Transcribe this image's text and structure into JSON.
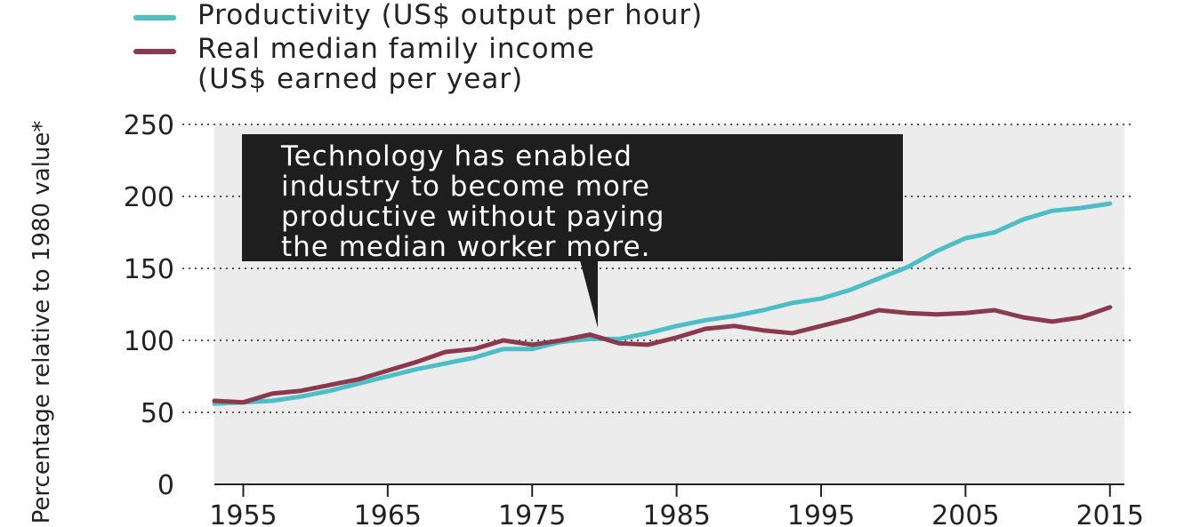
{
  "legend": {
    "productivity": "Productivity (US$ output per hour)",
    "income_line1": "Real median family income",
    "income_line2": "(US$ earned per year)"
  },
  "callout": {
    "text": "Technology has enabled\nindustry to become more\nproductive without paying\nthe median worker more."
  },
  "colors": {
    "productivity": "#4dbdc6",
    "income": "#8b3a4d",
    "plot_background": "#ececec",
    "callout_background": "#1e1e1e"
  },
  "chart_data": {
    "type": "line",
    "title": "",
    "xlabel": "",
    "ylabel": "Percentage relative to 1980 value*",
    "xlim": [
      1953,
      2016
    ],
    "ylim": [
      0,
      250
    ],
    "xticks": [
      1955,
      1965,
      1975,
      1985,
      1995,
      2005,
      2015
    ],
    "yticks": [
      0,
      50,
      100,
      150,
      200,
      250
    ],
    "grid": "horizontal dotted",
    "legend_position": "top",
    "series": [
      {
        "name": "Productivity (US$ output per hour)",
        "x": [
          1953,
          1955,
          1957,
          1959,
          1961,
          1963,
          1965,
          1967,
          1969,
          1971,
          1973,
          1975,
          1977,
          1979,
          1981,
          1983,
          1985,
          1987,
          1989,
          1991,
          1993,
          1995,
          1997,
          1999,
          2001,
          2003,
          2005,
          2007,
          2009,
          2011,
          2013,
          2015
        ],
        "y": [
          56,
          57,
          58,
          61,
          65,
          70,
          75,
          80,
          84,
          88,
          94,
          94,
          99,
          101,
          101,
          105,
          110,
          114,
          117,
          121,
          126,
          129,
          135,
          143,
          151,
          162,
          171,
          175,
          184,
          190,
          192,
          195
        ]
      },
      {
        "name": "Real median family income\n(US$ earned per year)",
        "x": [
          1953,
          1955,
          1957,
          1959,
          1961,
          1963,
          1965,
          1967,
          1969,
          1971,
          1973,
          1975,
          1977,
          1979,
          1981,
          1983,
          1985,
          1987,
          1989,
          1991,
          1993,
          1995,
          1997,
          1999,
          2001,
          2003,
          2005,
          2007,
          2009,
          2011,
          2013,
          2015
        ],
        "y": [
          58,
          57,
          63,
          65,
          69,
          73,
          79,
          85,
          92,
          94,
          100,
          97,
          100,
          104,
          98,
          97,
          102,
          108,
          110,
          107,
          105,
          110,
          115,
          121,
          119,
          118,
          119,
          121,
          116,
          113,
          116,
          123
        ]
      }
    ]
  }
}
